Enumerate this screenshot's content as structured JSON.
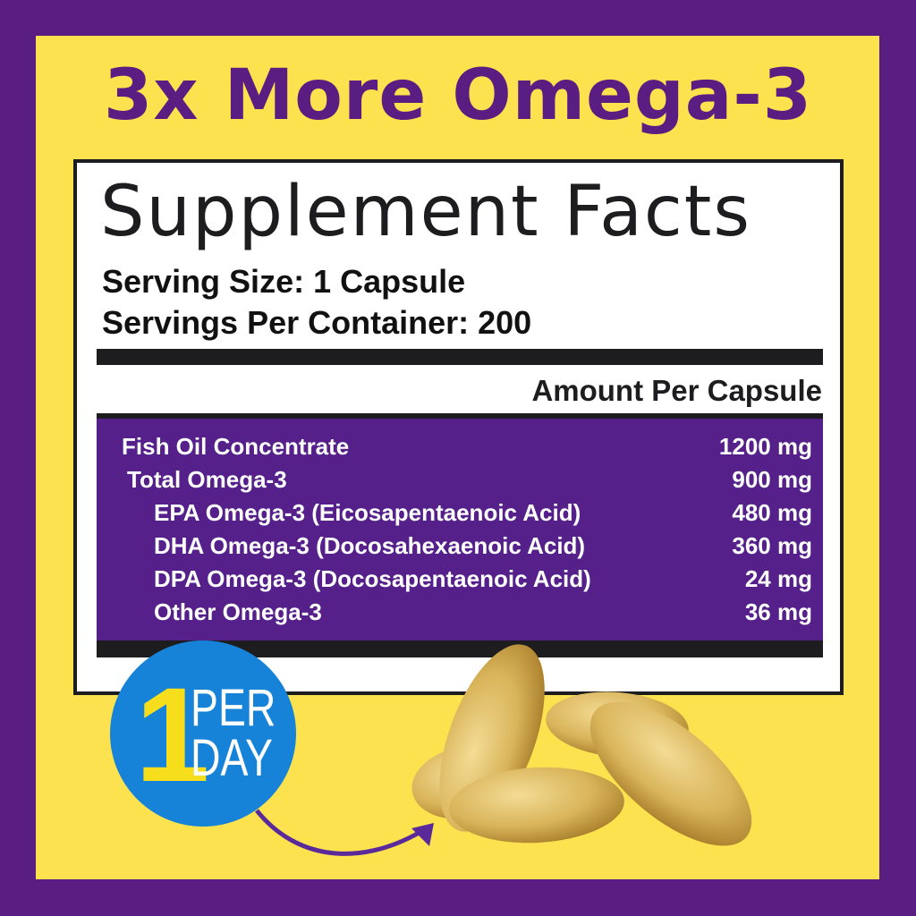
{
  "headline": "3x More Omega-3",
  "label": {
    "title": "Supplement Facts",
    "serving_size": "Serving Size: 1 Capsule",
    "servings_per_container": "Servings Per Container: 200",
    "amount_header": "Amount Per Capsule",
    "rows": [
      {
        "name": "Fish Oil Concentrate",
        "value": "1200 mg"
      },
      {
        "name": "Total Omega-3",
        "value": "900 mg"
      },
      {
        "name": "EPA Omega-3 (Eicosapentaenoic Acid)",
        "value": "480 mg"
      },
      {
        "name": "DHA Omega-3 (Docosahexaenoic Acid)",
        "value": "360 mg"
      },
      {
        "name": "DPA Omega-3 (Docosapentaenoic Acid)",
        "value": "24 mg"
      },
      {
        "name": "Other Omega-3",
        "value": "36 mg"
      }
    ]
  },
  "badge": {
    "number": "1",
    "line1": "PER",
    "line2": "DAY"
  },
  "colors": {
    "purple": "#5a1d82",
    "yellow": "#fde24f",
    "badge_blue": "#1683d9",
    "capsule": "#d9b45a"
  }
}
